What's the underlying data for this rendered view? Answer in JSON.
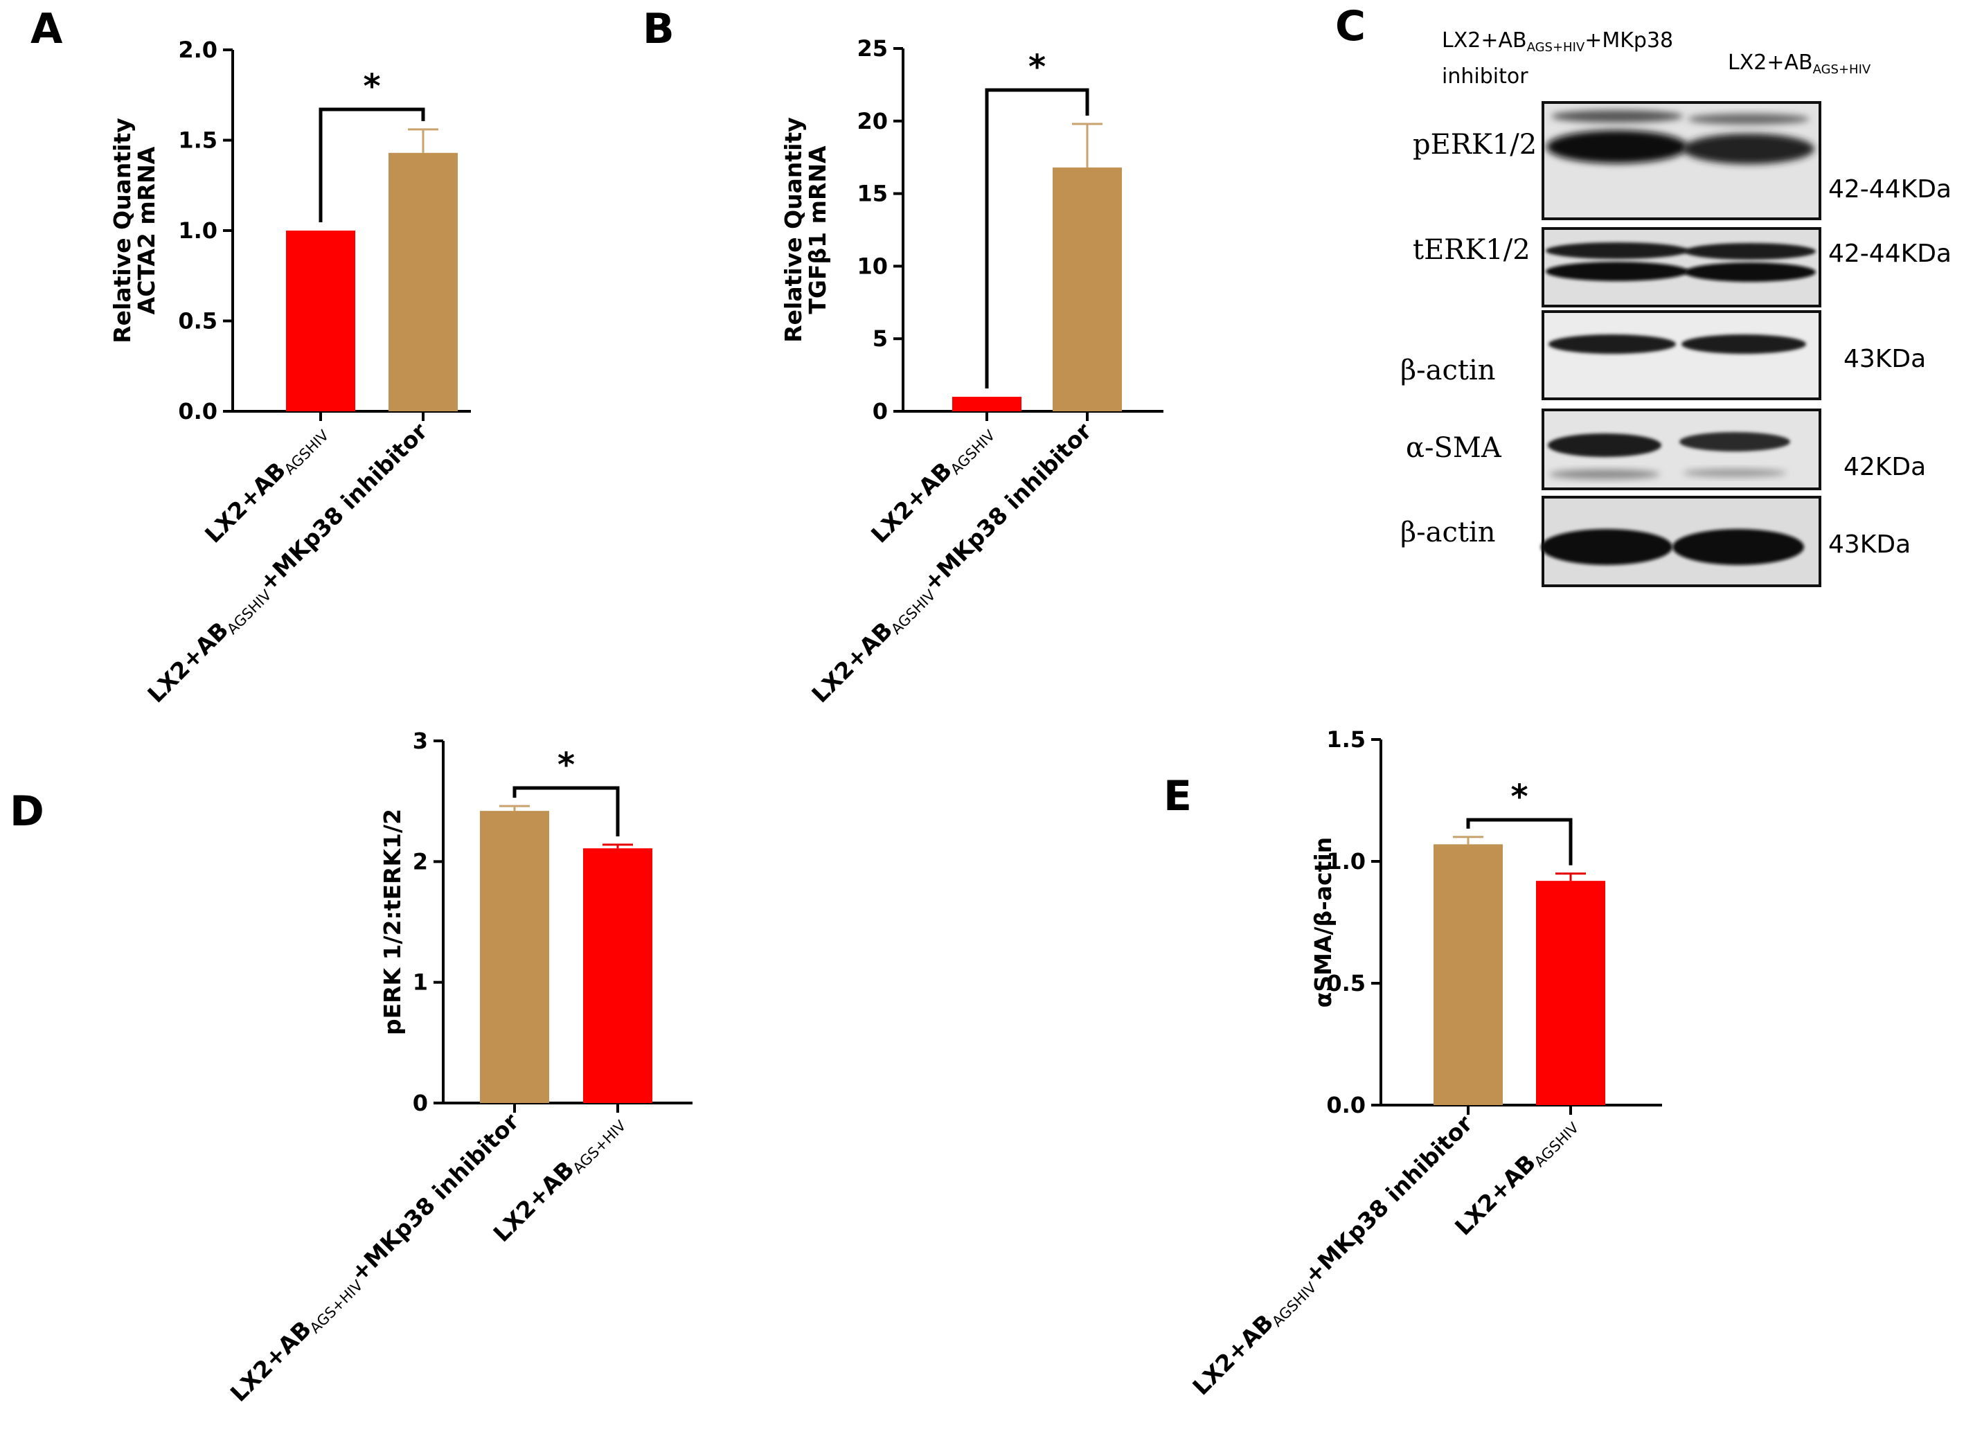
{
  "colors": {
    "red": "#ff0000",
    "tan": "#c09150",
    "err_tan": "#c9a26d",
    "err_red": "#e60000"
  },
  "cat_main": {
    "ctrl": "LX2+AB",
    "inh": "LX2+AB",
    "inh_suffix": "+MKp38 inhibitor",
    "sub_agshiv": "AGSHIV",
    "sub_ags_hiv": "AGS+HIV"
  },
  "chart_data": [
    {
      "panel": "A",
      "type": "bar",
      "ylabel_lines": [
        "Relative Quantity",
        "ACTA2 mRNA"
      ],
      "ylim": [
        0,
        2.0
      ],
      "yticks": [
        "0.0",
        "0.5",
        "1.0",
        "1.5",
        "2.0"
      ],
      "categories": [
        "LX2+ABAGSHIV",
        "LX2+ABAGSHIV+MKp38 inhibitor"
      ],
      "values": [
        1.0,
        1.43
      ],
      "errors": [
        0,
        0.13
      ],
      "colors": [
        "red",
        "tan"
      ],
      "significance": "*"
    },
    {
      "panel": "B",
      "type": "bar",
      "ylabel_lines": [
        "Relative Quantity",
        "TGFβ1 mRNA"
      ],
      "ylim": [
        0,
        25
      ],
      "yticks": [
        "0",
        "5",
        "10",
        "15",
        "20",
        "25"
      ],
      "categories": [
        "LX2+ABAGSHIV",
        "LX2+ABAGSHIV+MKp38 inhibitor"
      ],
      "values": [
        1.0,
        16.8
      ],
      "errors": [
        0,
        3.0
      ],
      "colors": [
        "red",
        "tan"
      ],
      "significance": "*"
    },
    {
      "panel": "D",
      "type": "bar",
      "ylabel_lines": [
        "pERK 1/2:tERK1/2"
      ],
      "ylim": [
        0,
        3
      ],
      "yticks": [
        "0",
        "1",
        "2",
        "3"
      ],
      "categories": [
        "LX2+ABAGS+HIV+MKp38 inhibitor",
        "LX2+ABAGS+HIV"
      ],
      "values": [
        2.42,
        2.11
      ],
      "errors": [
        0.04,
        0.03
      ],
      "colors": [
        "tan",
        "red"
      ],
      "significance": "*"
    },
    {
      "panel": "E",
      "type": "bar",
      "ylabel_lines": [
        "αSMA/β-actin"
      ],
      "ylim": [
        0,
        1.5
      ],
      "yticks": [
        "0.0",
        "0.5",
        "1.0",
        "1.5"
      ],
      "categories": [
        "LX2+ABAGSHIV+MKp38 inhibitor",
        "LX2+ABAGSHIV"
      ],
      "values": [
        1.07,
        0.92
      ],
      "errors": [
        0.03,
        0.03
      ],
      "colors": [
        "tan",
        "red"
      ],
      "significance": "*"
    }
  ],
  "blot": {
    "letter": "C",
    "lane1_line1": "LX2+AB",
    "lane1_sub": "AGS+HIV",
    "lane1_suffix": "+MKp38",
    "lane1_line2": "inhibitor",
    "lane2": "LX2+AB",
    "lane2_sub": "AGS+HIV",
    "rows": [
      {
        "label": "pERK1/2",
        "kda": "42-44KDa"
      },
      {
        "label": "tERK1/2",
        "kda": "42-44KDa"
      },
      {
        "label": "β-actin",
        "kda": "43KDa"
      },
      {
        "label": "α-SMA",
        "kda": "42KDa"
      },
      {
        "label": "β-actin",
        "kda": "43KDa"
      }
    ]
  }
}
